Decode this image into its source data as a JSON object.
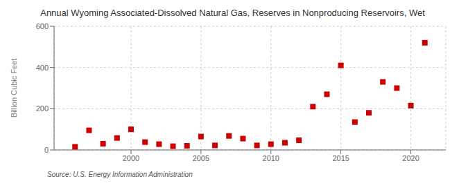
{
  "chart_data": {
    "type": "scatter",
    "title": "Annual Wyoming Associated-Dissolved Natural Gas, Reserves in Nonproducing Reservoirs, Wet",
    "ylabel": "Billion Cubic Feet",
    "annotation": "Source: U.S. Energy Information Administration",
    "x": [
      1996,
      1997,
      1998,
      1999,
      2000,
      2001,
      2002,
      2003,
      2004,
      2005,
      2006,
      2007,
      2008,
      2009,
      2010,
      2011,
      2012,
      2013,
      2014,
      2015,
      2016,
      2017,
      2018,
      2019,
      2020,
      2021
    ],
    "values": [
      15,
      95,
      30,
      58,
      100,
      38,
      28,
      18,
      20,
      65,
      22,
      68,
      55,
      22,
      28,
      35,
      47,
      210,
      270,
      410,
      135,
      180,
      330,
      300,
      215,
      520
    ],
    "color": "#cc0000",
    "marker": "square",
    "xlim": [
      1994.5,
      2022.5
    ],
    "ylim": [
      0,
      600
    ],
    "xticks": [
      2000,
      2005,
      2010,
      2015,
      2020
    ],
    "yticks": [
      0,
      200,
      400,
      600
    ],
    "grid": true
  }
}
